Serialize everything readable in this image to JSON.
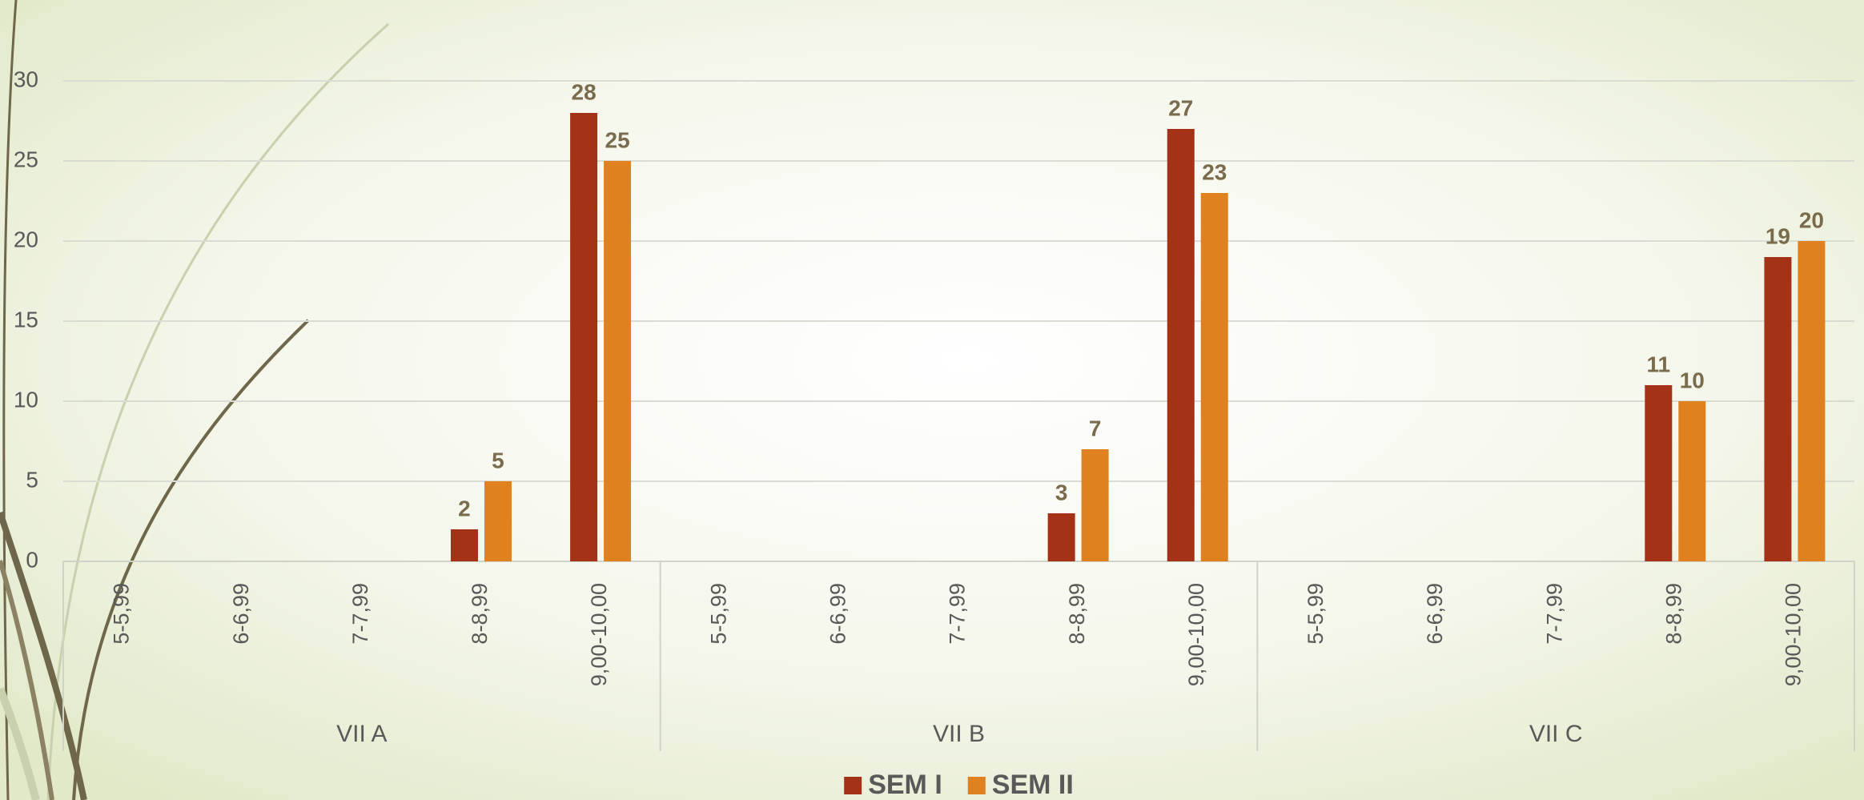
{
  "chart_data": {
    "type": "bar",
    "categories": [
      "5-5,99",
      "6-6,99",
      "7-7,99",
      "8-8,99",
      "9,00-10,00",
      "5-5,99",
      "6-6,99",
      "7-7,99",
      "8-8,99",
      "9,00-10,00",
      "5-5,99",
      "6-6,99",
      "7-7,99",
      "8-8,99",
      "9,00-10,00"
    ],
    "category_groups": [
      "VII A",
      "VII B",
      "VII C"
    ],
    "series": [
      {
        "name": "SEM I",
        "color": "#a33216",
        "values": [
          null,
          null,
          null,
          2,
          28,
          null,
          null,
          null,
          3,
          27,
          null,
          null,
          null,
          11,
          19
        ]
      },
      {
        "name": "SEM II",
        "color": "#e0811f",
        "values": [
          null,
          null,
          null,
          5,
          25,
          null,
          null,
          null,
          7,
          23,
          null,
          null,
          null,
          10,
          20
        ]
      }
    ],
    "ylim": [
      0,
      30
    ],
    "yticks": [
      0,
      5,
      10,
      15,
      20,
      25,
      30
    ],
    "grid": true,
    "legend": "bottom"
  }
}
